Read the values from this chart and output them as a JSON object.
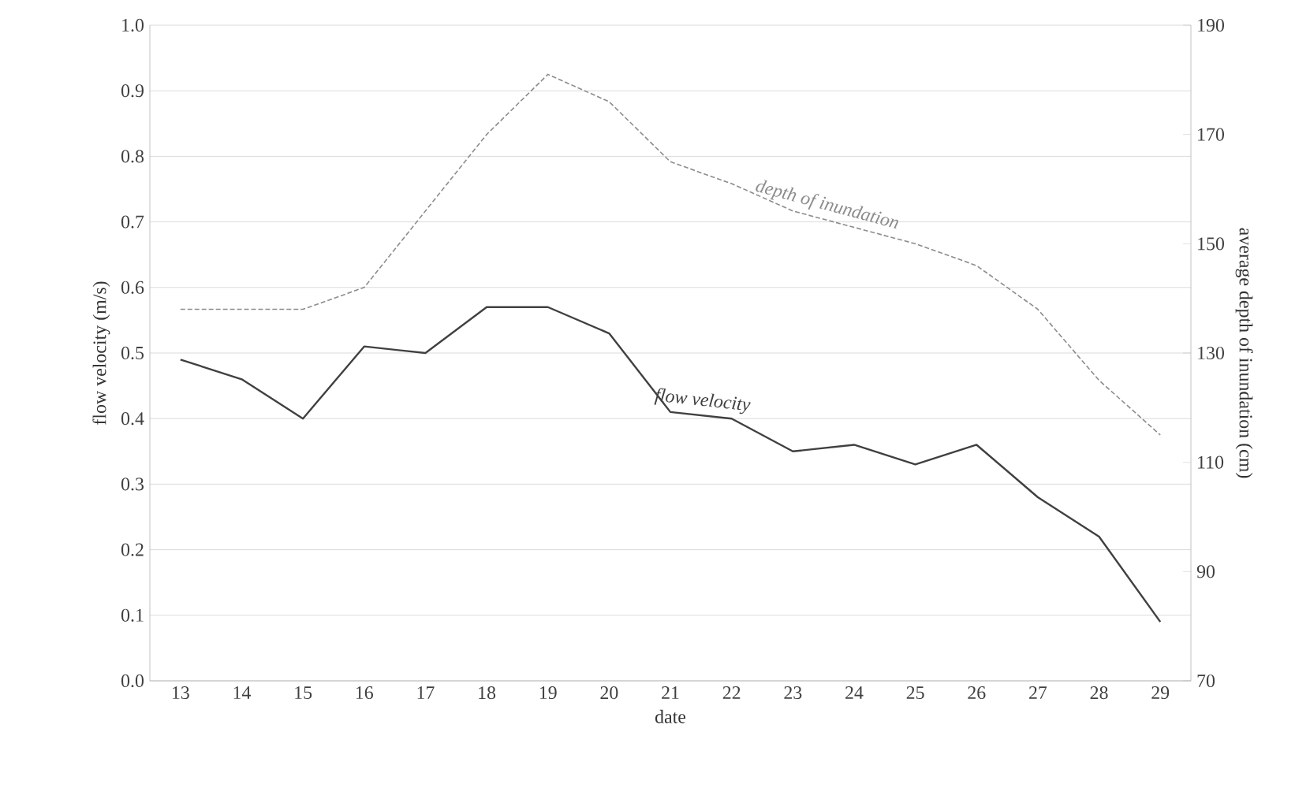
{
  "chart_data": {
    "type": "line",
    "xlabel": "date",
    "ylabel": "flow velocity (m/s)",
    "y2label": "average depth of inundation (cm)",
    "categories": [
      "13",
      "14",
      "15",
      "16",
      "17",
      "18",
      "19",
      "20",
      "21",
      "22",
      "23",
      "24",
      "25",
      "26",
      "27",
      "28",
      "29"
    ],
    "series": [
      {
        "name": "flow velocity",
        "color": "#404040",
        "line_style": "solid",
        "values": [
          0.49,
          0.46,
          0.4,
          0.51,
          0.5,
          0.57,
          0.57,
          0.53,
          0.41,
          0.4,
          0.35,
          0.36,
          0.33,
          0.36,
          0.28,
          0.22,
          0.09
        ]
      },
      {
        "name": "depth of inundation",
        "color": "#8c8c8c",
        "line_style": "dashed",
        "axis": "y2",
        "values": [
          138,
          138,
          138,
          142,
          156,
          170,
          181,
          176,
          165,
          161,
          156,
          153,
          150,
          146,
          138,
          125,
          115
        ]
      }
    ],
    "ylim": [
      0,
      1.0
    ],
    "yticks": [
      {
        "value": 0,
        "label": "0.0"
      },
      {
        "value": 0.1,
        "label": "0.1"
      },
      {
        "value": 0.2,
        "label": "0.2"
      },
      {
        "value": 0.3,
        "label": "0.3"
      },
      {
        "value": 0.4,
        "label": "0.4"
      },
      {
        "value": 0.5,
        "label": "0.5"
      },
      {
        "value": 0.6,
        "label": "0.6"
      },
      {
        "value": 0.7,
        "label": "0.7"
      },
      {
        "value": 0.8,
        "label": "0.8"
      },
      {
        "value": 0.9,
        "label": "0.9"
      },
      {
        "value": 1.0,
        "label": "1.0"
      }
    ],
    "y2lim": [
      70,
      190
    ],
    "y2ticks": [
      70,
      90,
      110,
      130,
      150,
      170,
      190
    ],
    "grid": "y",
    "marker": "none"
  }
}
